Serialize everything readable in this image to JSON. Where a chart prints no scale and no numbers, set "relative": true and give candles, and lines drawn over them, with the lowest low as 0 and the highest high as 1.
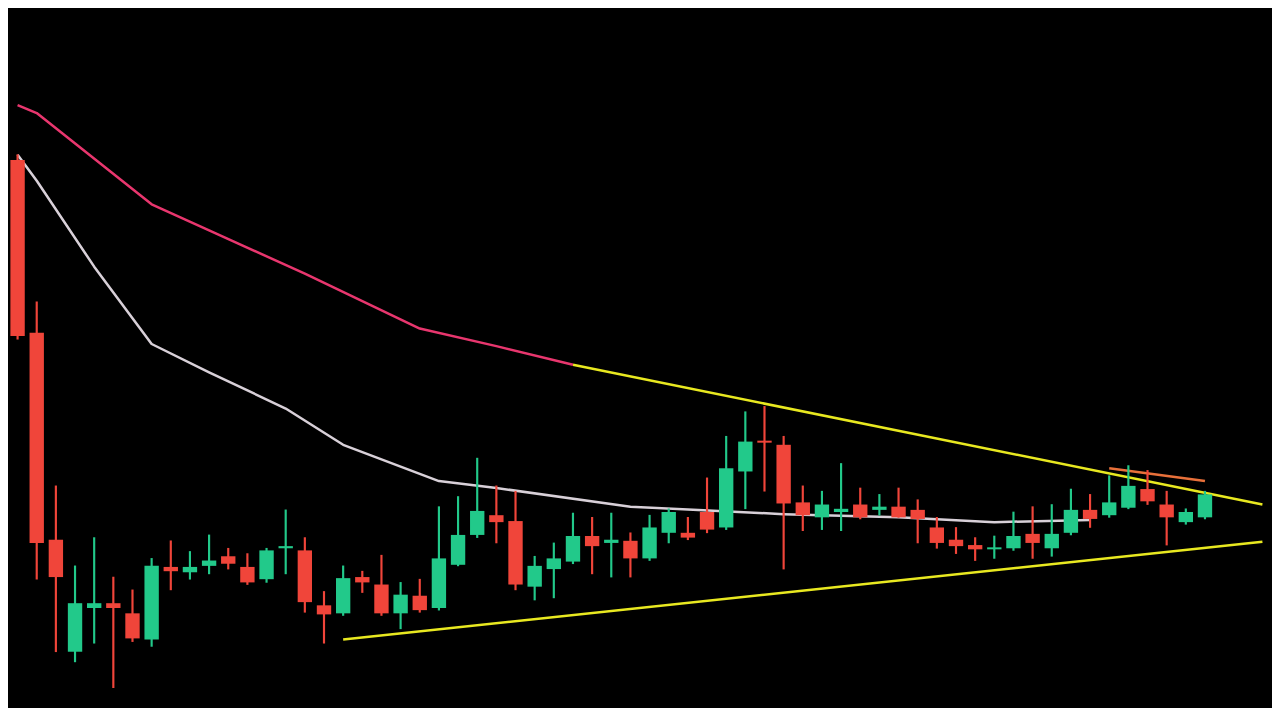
{
  "chart_data": {
    "type": "candlestick",
    "relative": true,
    "categories": [
      null,
      null,
      null,
      null,
      null,
      null,
      null,
      null,
      null,
      null,
      null,
      null,
      null,
      null,
      null,
      null,
      null,
      null,
      null,
      null,
      null,
      null,
      null,
      null,
      null,
      null,
      null,
      null,
      null,
      null,
      null,
      null,
      null,
      null,
      null,
      null,
      null,
      null,
      null,
      null,
      null,
      null,
      null,
      null,
      null,
      null,
      null,
      null,
      null,
      null,
      null,
      null,
      null,
      null,
      null,
      null,
      null,
      null,
      null,
      null,
      null,
      null,
      null,
      null,
      null,
      null
    ],
    "ohlc": [
      [
        0.99,
        1.0,
        0.654,
        0.66
      ],
      [
        0.666,
        0.724,
        0.204,
        0.272
      ],
      [
        0.278,
        0.379,
        0.068,
        0.208
      ],
      [
        0.068,
        0.229,
        0.049,
        0.159
      ],
      [
        0.15,
        0.282,
        0.084,
        0.159
      ],
      [
        0.159,
        0.208,
        0.0,
        0.15
      ],
      [
        0.14,
        0.184,
        0.087,
        0.093
      ],
      [
        0.091,
        0.243,
        0.078,
        0.229
      ],
      [
        0.227,
        0.276,
        0.184,
        0.219
      ],
      [
        0.217,
        0.256,
        0.204,
        0.227
      ],
      [
        0.229,
        0.287,
        0.214,
        0.239
      ],
      [
        0.247,
        0.262,
        0.223,
        0.233
      ],
      [
        0.227,
        0.252,
        0.194,
        0.198
      ],
      [
        0.204,
        0.262,
        0.198,
        0.258
      ],
      [
        0.262,
        0.334,
        0.214,
        0.266
      ],
      [
        0.258,
        0.282,
        0.142,
        0.161
      ],
      [
        0.155,
        0.181,
        0.084,
        0.138
      ],
      [
        0.14,
        0.229,
        0.136,
        0.206
      ],
      [
        0.208,
        0.219,
        0.179,
        0.198
      ],
      [
        0.194,
        0.249,
        0.136,
        0.14
      ],
      [
        0.14,
        0.198,
        0.111,
        0.175
      ],
      [
        0.173,
        0.204,
        0.142,
        0.146
      ],
      [
        0.15,
        0.34,
        0.146,
        0.243
      ],
      [
        0.231,
        0.359,
        0.229,
        0.287
      ],
      [
        0.287,
        0.431,
        0.282,
        0.332
      ],
      [
        0.324,
        0.379,
        0.272,
        0.311
      ],
      [
        0.313,
        0.369,
        0.184,
        0.194
      ],
      [
        0.19,
        0.247,
        0.165,
        0.229
      ],
      [
        0.223,
        0.272,
        0.169,
        0.243
      ],
      [
        0.237,
        0.328,
        0.233,
        0.285
      ],
      [
        0.285,
        0.32,
        0.214,
        0.266
      ],
      [
        0.272,
        0.328,
        0.208,
        0.278
      ],
      [
        0.276,
        0.291,
        0.208,
        0.243
      ],
      [
        0.243,
        0.324,
        0.239,
        0.301
      ],
      [
        0.291,
        0.336,
        0.272,
        0.33
      ],
      [
        0.291,
        0.32,
        0.278,
        0.282
      ],
      [
        0.33,
        0.394,
        0.291,
        0.297
      ],
      [
        0.301,
        0.472,
        0.297,
        0.412
      ],
      [
        0.406,
        0.518,
        0.336,
        0.462
      ],
      [
        0.462,
        0.528,
        0.369,
        0.46
      ],
      [
        0.456,
        0.472,
        0.223,
        0.346
      ],
      [
        0.348,
        0.379,
        0.295,
        0.324
      ],
      [
        0.32,
        0.369,
        0.297,
        0.344
      ],
      [
        0.33,
        0.421,
        0.295,
        0.336
      ],
      [
        0.344,
        0.375,
        0.317,
        0.32
      ],
      [
        0.334,
        0.363,
        0.324,
        0.34
      ],
      [
        0.34,
        0.375,
        0.32,
        0.32
      ],
      [
        0.334,
        0.353,
        0.272,
        0.317
      ],
      [
        0.301,
        0.32,
        0.262,
        0.272
      ],
      [
        0.278,
        0.301,
        0.252,
        0.266
      ],
      [
        0.268,
        0.282,
        0.239,
        0.26
      ],
      [
        0.26,
        0.285,
        0.243,
        0.262
      ],
      [
        0.262,
        0.33,
        0.258,
        0.285
      ],
      [
        0.289,
        0.34,
        0.243,
        0.272
      ],
      [
        0.262,
        0.344,
        0.247,
        0.289
      ],
      [
        0.291,
        0.373,
        0.287,
        0.334
      ],
      [
        0.334,
        0.363,
        0.301,
        0.317
      ],
      [
        0.324,
        0.398,
        0.32,
        0.348
      ],
      [
        0.338,
        0.417,
        0.336,
        0.379
      ],
      [
        0.373,
        0.408,
        0.344,
        0.35
      ],
      [
        0.344,
        0.369,
        0.268,
        0.32
      ],
      [
        0.311,
        0.336,
        0.307,
        0.33
      ],
      [
        0.32,
        0.369,
        0.317,
        0.363
      ],
      null,
      null,
      null
    ],
    "colors": [
      "#f0453a",
      "#f0453a",
      "#f0453a",
      "#22c98a",
      "#22c98a",
      "#f0453a",
      "#f0453a",
      "#22c98a",
      "#f0453a",
      "#22c98a",
      "#22c98a",
      "#f0453a",
      "#f0453a",
      "#22c98a",
      "#22c98a",
      "#f0453a",
      "#f0453a",
      "#22c98a",
      "#f0453a",
      "#f0453a",
      "#22c98a",
      "#f0453a",
      "#22c98a",
      "#22c98a",
      "#22c98a",
      "#f0453a",
      "#f0453a",
      "#22c98a",
      "#22c98a",
      "#22c98a",
      "#f0453a",
      "#22c98a",
      "#f0453a",
      "#22c98a",
      "#22c98a",
      "#f0453a",
      "#f0453a",
      "#22c98a",
      "#22c98a",
      "#f0453a",
      "#f0453a",
      "#f0453a",
      "#22c98a",
      "#22c98a",
      "#f0453a",
      "#22c98a",
      "#f0453a",
      "#f0453a",
      "#f0453a",
      "#f0453a",
      "#f0453a",
      "#22c98a",
      "#22c98a",
      "#f0453a",
      "#22c98a",
      "#22c98a",
      "#f0453a",
      "#22c98a",
      "#22c98a",
      "#f0453a",
      "#f0453a",
      "#22c98a",
      "#22c98a",
      null,
      null,
      null
    ],
    "series": [
      {
        "type": "line",
        "color": "#e8366e",
        "values": [
          1.093,
          1.078,
          null,
          null,
          null,
          null,
          null,
          0.907,
          null,
          null,
          0.858,
          null,
          null,
          null,
          null,
          0.777,
          null,
          null,
          null,
          null,
          null,
          0.674,
          null,
          null,
          null,
          0.641,
          null,
          null,
          null,
          0.606,
          null,
          null,
          null,
          null,
          null,
          null,
          null,
          null,
          null,
          null,
          null,
          null,
          null,
          null,
          null,
          null,
          null,
          null,
          null,
          null,
          null,
          null,
          null,
          null,
          null,
          null,
          null,
          null,
          null,
          null,
          null,
          null,
          null,
          null,
          null,
          null
        ]
      },
      {
        "type": "line",
        "color": "#d8d0d8",
        "values": [
          1.0,
          0.951,
          null,
          null,
          0.79,
          null,
          null,
          0.645,
          null,
          null,
          0.592,
          null,
          null,
          null,
          0.524,
          null,
          null,
          0.456,
          null,
          null,
          null,
          null,
          0.388,
          null,
          null,
          0.375,
          null,
          null,
          null,
          null,
          null,
          null,
          0.34,
          null,
          null,
          null,
          null,
          null,
          null,
          null,
          0.326,
          null,
          null,
          null,
          null,
          null,
          0.32,
          null,
          null,
          null,
          null,
          0.311,
          null,
          null,
          null,
          null,
          0.315,
          null,
          null,
          null,
          null,
          null,
          null,
          null,
          null,
          null
        ]
      },
      {
        "type": "line",
        "color": "#e8e820",
        "values": [
          null,
          null,
          null,
          null,
          null,
          null,
          null,
          null,
          null,
          null,
          null,
          null,
          null,
          null,
          null,
          null,
          null,
          null,
          null,
          null,
          null,
          null,
          null,
          null,
          null,
          null,
          null,
          null,
          null,
          0.606,
          null,
          null,
          null,
          null,
          null,
          null,
          null,
          null,
          null,
          null,
          null,
          null,
          null,
          null,
          null,
          null,
          null,
          null,
          null,
          null,
          null,
          null,
          null,
          null,
          null,
          null,
          null,
          null,
          null,
          null,
          null,
          null,
          null,
          null,
          null,
          0.344
        ]
      },
      {
        "type": "line",
        "color": "#e8e820",
        "values": [
          null,
          null,
          null,
          null,
          null,
          null,
          null,
          null,
          null,
          null,
          null,
          null,
          null,
          null,
          null,
          null,
          null,
          0.091,
          null,
          null,
          null,
          null,
          null,
          null,
          null,
          null,
          null,
          null,
          null,
          null,
          null,
          null,
          null,
          null,
          null,
          null,
          null,
          null,
          null,
          null,
          null,
          null,
          null,
          null,
          null,
          null,
          null,
          null,
          null,
          null,
          null,
          null,
          null,
          null,
          null,
          null,
          null,
          null,
          null,
          null,
          null,
          null,
          null,
          null,
          null,
          0.274
        ]
      },
      {
        "type": "line",
        "color": "#e8703a",
        "values": [
          null,
          null,
          null,
          null,
          null,
          null,
          null,
          null,
          null,
          null,
          null,
          null,
          null,
          null,
          null,
          null,
          null,
          null,
          null,
          null,
          null,
          null,
          null,
          null,
          null,
          null,
          null,
          null,
          null,
          null,
          null,
          null,
          null,
          null,
          null,
          null,
          null,
          null,
          null,
          null,
          null,
          null,
          null,
          null,
          null,
          null,
          null,
          null,
          null,
          null,
          null,
          null,
          null,
          null,
          null,
          null,
          null,
          0.412,
          null,
          null,
          null,
          null,
          0.388,
          null,
          null,
          null
        ]
      }
    ]
  }
}
